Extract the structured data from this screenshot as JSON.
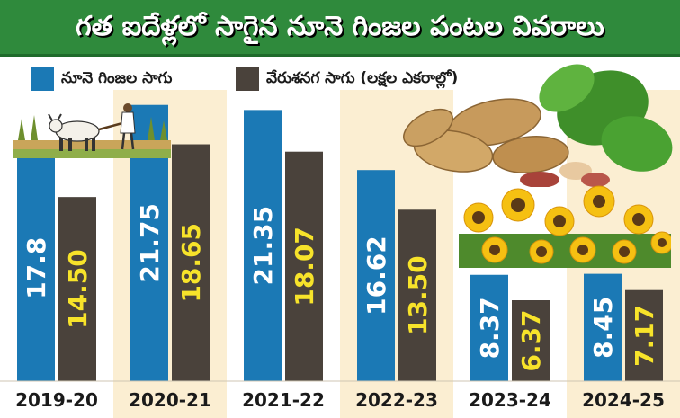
{
  "title": "గత ఐదేళ్లలో సాగైన నూనె గింజల పంటల వివరాలు",
  "legend": {
    "series_1": "నూనె గింజల సాగు",
    "series_2": "వేరుశనగ సాగు (లక్షల ఎకరాల్లో)"
  },
  "colors": {
    "series_1": "#1b79b5",
    "series_2": "#4a423b",
    "value_label_1": "#ffffff",
    "value_label_2": "#f7e32a",
    "band": "#fbeed2",
    "banner": "#2f8a3c"
  },
  "decorations": [
    "farmer-plowing-icon",
    "peanuts-icon",
    "sunflowers-icon"
  ],
  "chart_data": {
    "type": "bar",
    "categories": [
      "2019-20",
      "2020-21",
      "2021-22",
      "2022-23",
      "2023-24",
      "2024-25"
    ],
    "series": [
      {
        "name": "నూనె గింజల సాగు",
        "values": [
          17.8,
          21.75,
          21.35,
          16.62,
          8.37,
          8.45
        ],
        "labels": [
          "17.8",
          "21.75",
          "21.35",
          "16.62",
          "8.37",
          "8.45"
        ]
      },
      {
        "name": "వేరుశనగ సాగు (లక్షల ఎకరాల్లో)",
        "values": [
          14.5,
          18.65,
          18.07,
          13.5,
          6.37,
          7.17
        ],
        "labels": [
          "14.50",
          "18.65",
          "18.07",
          "13.50",
          "6.37",
          "7.17"
        ]
      }
    ],
    "ylim": [
      0,
      23.5
    ],
    "value_label_orientation": "vertical",
    "grid": false,
    "legend_position": "top-left"
  }
}
